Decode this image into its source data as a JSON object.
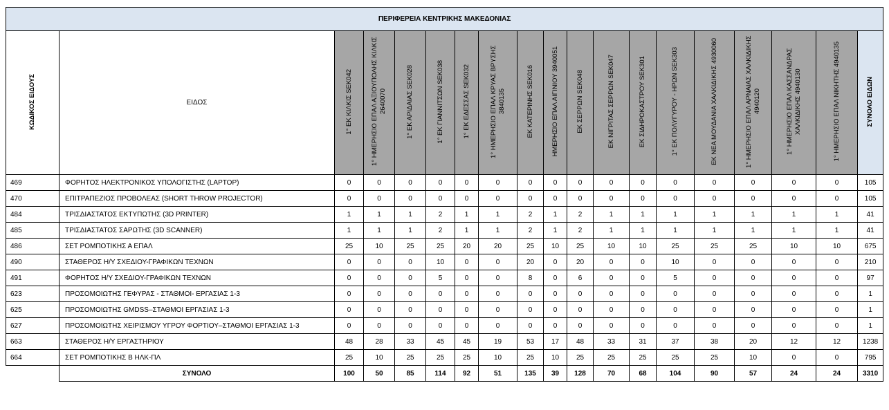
{
  "title": "ΠΕΡΙΦΕΡΕΙΑ ΚΕΝΤΡΙΚΗΣ ΜΑΚΕΔΟΝΙΑΣ",
  "code_header": "ΚΩΔΙΚΟΣ ΕΙΔΟΥΣ",
  "item_header": "ΕΙΔΟΣ",
  "total_header": "ΣΥΝΟΛΟ ΕΙΔΩΝ",
  "schools": [
    "1° ΕΚ ΚΙΛΚΙΣ SEK042",
    "1° ΗΜΕΡΗΣΙΟ ΕΠΑΛ ΑΞΙΟΥΠΟΛΗΣ ΚΙΛΚΙΣ 2640070",
    "1° ΕΚ ΑΡΙΔΑΙΑΣ SEK028",
    "1° ΕΚ ΓΙΑΝΝΙΤΣΩΝ SEK038",
    "1° ΕΚ ΕΔΕΣΣΑΣ SEK032",
    "1° ΗΜΕΡΗΣΙΟ ΕΠΑΛ ΚΡΥΑΣ ΒΡΥΣΗΣ 3840135",
    "ΕΚ ΚΑΤΕΡΙΝΗΣ SEK016",
    "ΗΜΕΡΗΣΙΟ ΕΠΑΛ ΑΙΓΙΝΙΟΥ 3940051",
    "ΕΚ ΣΕΡΡΩΝ SEK048",
    "ΕΚ ΝΙΓΡΙΤΑΣ ΣΕΡΡΩΝ SEK047",
    "ΕΚ ΣΙΔΗΡΟΚΑΣΤΡΟΥ SEK301",
    "1° ΕΚ ΠΟΛΥΓΥΡΟΥ - ΗΡΩΝ SEK303",
    "ΕΚ ΝΕΑ ΜΟΥΔΑΝΙΑ ΧΑΛΚΙΔΙΚΗΣ 4930060",
    "1° ΗΜΕΡΗΣΙΟ ΕΠΑΛ ΑΡΝΑΙΑΣ ΧΑΛΚΙΔΙΚΗΣ 4940120",
    "1° ΗΜΕΡΗΣΙΟ ΕΠΑΛ ΚΑΣΣΑΝΔΡΑΣ ΧΑΛΚΙΔΙΚΗΣ 4940130",
    "1° ΗΜΕΡΗΣΙΟ ΕΠΑΛ ΝΙΚΗΤΗΣ 4940135"
  ],
  "rows": [
    {
      "code": "469",
      "name": "ΦΟΡΗΤΟΣ ΗΛΕΚΤΡΟΝΙΚΟΣ ΥΠΟΛΟΓΙΣΤΗΣ (LAPTOP)",
      "values": [
        "0",
        "0",
        "0",
        "0",
        "0",
        "0",
        "0",
        "0",
        "0",
        "0",
        "0",
        "0",
        "0",
        "0",
        "0",
        "0"
      ],
      "total": "105"
    },
    {
      "code": "470",
      "name": "ΕΠΙΤΡΑΠΕΖΙΟΣ ΠΡΟΒΟΛΕΑΣ (SHORT THROW PROJECTOR)",
      "values": [
        "0",
        "0",
        "0",
        "0",
        "0",
        "0",
        "0",
        "0",
        "0",
        "0",
        "0",
        "0",
        "0",
        "0",
        "0",
        "0"
      ],
      "total": "105"
    },
    {
      "code": "484",
      "name": "ΤΡΙΣΔΙΑΣΤΑΤΟΣ ΕΚΤΥΠΩΤΗΣ (3D PRINTER)",
      "values": [
        "1",
        "1",
        "1",
        "2",
        "1",
        "1",
        "2",
        "1",
        "2",
        "1",
        "1",
        "1",
        "1",
        "1",
        "1",
        "1"
      ],
      "total": "41"
    },
    {
      "code": "485",
      "name": "ΤΡΙΣΔΙΑΣΤΑΤΟΣ ΣΑΡΩΤΗΣ (3D SCANNER)",
      "values": [
        "1",
        "1",
        "1",
        "2",
        "1",
        "1",
        "2",
        "1",
        "2",
        "1",
        "1",
        "1",
        "1",
        "1",
        "1",
        "1"
      ],
      "total": "41"
    },
    {
      "code": "486",
      "name": "ΣΕΤ ΡΟΜΠΟΤΙΚΗΣ Α ΕΠΑΛ",
      "values": [
        "25",
        "10",
        "25",
        "25",
        "20",
        "20",
        "25",
        "10",
        "25",
        "10",
        "10",
        "25",
        "25",
        "25",
        "10",
        "10"
      ],
      "total": "675"
    },
    {
      "code": "490",
      "name": "ΣΤΑΘΕΡΟΣ Η/Υ ΣΧΕΔΙΟΥ-ΓΡΑΦΙΚΩΝ ΤΕΧΝΩΝ",
      "values": [
        "0",
        "0",
        "0",
        "10",
        "0",
        "0",
        "20",
        "0",
        "20",
        "0",
        "0",
        "10",
        "0",
        "0",
        "0",
        "0"
      ],
      "total": "210"
    },
    {
      "code": "491",
      "name": "ΦΟΡΗΤΟΣ Η/Υ ΣΧΕΔΙΟΥ-ΓΡΑΦΙΚΩΝ ΤΕΧΝΩΝ",
      "values": [
        "0",
        "0",
        "0",
        "5",
        "0",
        "0",
        "8",
        "0",
        "6",
        "0",
        "0",
        "5",
        "0",
        "0",
        "0",
        "0"
      ],
      "total": "97"
    },
    {
      "code": "623",
      "name": "ΠΡΟΣΟΜΟΙΩΤΗΣ ΓΕΦΥΡΑΣ - ΣΤΑΘΜΟΙ- ΕΡΓΑΣΙΑΣ 1-3",
      "values": [
        "0",
        "0",
        "0",
        "0",
        "0",
        "0",
        "0",
        "0",
        "0",
        "0",
        "0",
        "0",
        "0",
        "0",
        "0",
        "0"
      ],
      "total": "1"
    },
    {
      "code": "625",
      "name": "ΠΡΟΣΟΜΟΙΩΤΗΣ GMDSS–ΣΤΑΘΜΟΙ ΕΡΓΑΣΙΑΣ 1-3",
      "values": [
        "0",
        "0",
        "0",
        "0",
        "0",
        "0",
        "0",
        "0",
        "0",
        "0",
        "0",
        "0",
        "0",
        "0",
        "0",
        "0"
      ],
      "total": "1"
    },
    {
      "code": "627",
      "name": "ΠΡΟΣΟΜΟΙΩΤΗΣ ΧΕΙΡΙΣΜΟΥ ΥΓΡΟΥ ΦΟΡΤΙΟΥ–ΣΤΑΘΜΟΙ ΕΡΓΑΣΙΑΣ 1-3",
      "values": [
        "0",
        "0",
        "0",
        "0",
        "0",
        "0",
        "0",
        "0",
        "0",
        "0",
        "0",
        "0",
        "0",
        "0",
        "0",
        "0"
      ],
      "total": "1"
    },
    {
      "code": "663",
      "name": "ΣΤΑΘΕΡΟΣ Η/Υ ΕΡΓΑΣΤΗΡΙΟΥ",
      "values": [
        "48",
        "28",
        "33",
        "45",
        "45",
        "19",
        "53",
        "17",
        "48",
        "33",
        "31",
        "37",
        "38",
        "20",
        "12",
        "12"
      ],
      "total": "1238"
    },
    {
      "code": "664",
      "name": "ΣΕΤ ΡΟΜΠΟΤΙΚΗΣ Β ΗΛΚ-ΠΛ",
      "values": [
        "25",
        "10",
        "25",
        "25",
        "25",
        "10",
        "25",
        "10",
        "25",
        "25",
        "25",
        "25",
        "25",
        "10",
        "0",
        "0"
      ],
      "total": "795"
    }
  ],
  "totals": {
    "label": "ΣΥΝΟΛΟ",
    "values": [
      "100",
      "50",
      "85",
      "114",
      "92",
      "51",
      "135",
      "39",
      "128",
      "70",
      "68",
      "104",
      "90",
      "57",
      "24",
      "24"
    ],
    "total": "3310"
  }
}
